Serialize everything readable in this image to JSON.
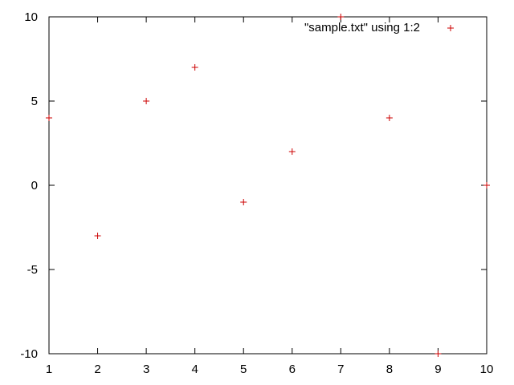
{
  "chart_data": {
    "type": "scatter",
    "title": "",
    "xlabel": "",
    "ylabel": "",
    "xlim": [
      1,
      10
    ],
    "ylim": [
      -10,
      10
    ],
    "xticks": [
      "1",
      "2",
      "3",
      "4",
      "5",
      "6",
      "7",
      "8",
      "9",
      "10"
    ],
    "yticks": [
      "10",
      "5",
      "0",
      "-5",
      "-10"
    ],
    "grid": false,
    "legend_position": "top-right",
    "series": [
      {
        "name": "\"sample.txt\" using 1:2",
        "color": "#cc0000",
        "marker": "plus",
        "x": [
          1,
          2,
          3,
          4,
          5,
          6,
          7,
          8,
          9,
          10
        ],
        "y": [
          4,
          -3,
          5,
          7,
          -1,
          2,
          10,
          4,
          -10,
          0
        ]
      }
    ]
  }
}
